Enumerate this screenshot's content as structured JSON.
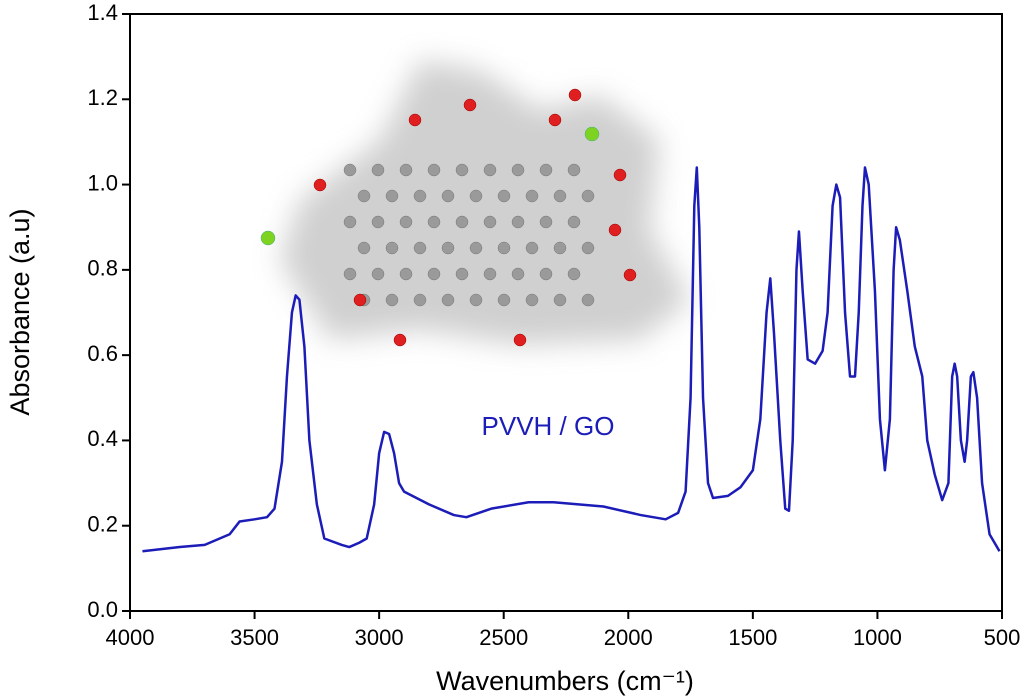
{
  "chart_data": {
    "type": "line",
    "xlabel": "Wavenumbers (cm⁻¹)",
    "ylabel": "Absorbance (a.u)",
    "xlim": [
      4000,
      500
    ],
    "xticks": [
      4000,
      3500,
      3000,
      2500,
      2000,
      1500,
      1000,
      500
    ],
    "ylim": [
      0,
      1.4
    ],
    "yticks": [
      {
        "value": 0,
        "label": "0.0"
      },
      0.2,
      0.4,
      0.6,
      0.8,
      {
        "value": 1,
        "label": "1.0"
      },
      1.2,
      1.4
    ],
    "x": [
      3950,
      3800,
      3700,
      3600,
      3560,
      3500,
      3450,
      3420,
      3390,
      3370,
      3350,
      3335,
      3320,
      3300,
      3280,
      3250,
      3220,
      3150,
      3120,
      3080,
      3050,
      3020,
      3000,
      2980,
      2960,
      2940,
      2920,
      2900,
      2800,
      2700,
      2650,
      2550,
      2400,
      2300,
      2100,
      1950,
      1850,
      1800,
      1770,
      1750,
      1735,
      1725,
      1715,
      1700,
      1680,
      1660,
      1600,
      1550,
      1500,
      1470,
      1445,
      1430,
      1415,
      1390,
      1370,
      1355,
      1340,
      1325,
      1315,
      1300,
      1280,
      1250,
      1220,
      1200,
      1180,
      1165,
      1150,
      1130,
      1110,
      1090,
      1075,
      1060,
      1050,
      1035,
      1010,
      990,
      970,
      950,
      935,
      925,
      910,
      880,
      850,
      820,
      800,
      770,
      740,
      715,
      700,
      690,
      680,
      665,
      650,
      640,
      625,
      615,
      600,
      580,
      550,
      510
    ],
    "series": [
      {
        "name": "PVVH / GO",
        "color": "#1c1cb8",
        "values": [
          0.14,
          0.15,
          0.155,
          0.18,
          0.21,
          0.215,
          0.22,
          0.24,
          0.35,
          0.55,
          0.7,
          0.74,
          0.73,
          0.62,
          0.4,
          0.25,
          0.17,
          0.155,
          0.15,
          0.16,
          0.17,
          0.25,
          0.37,
          0.42,
          0.415,
          0.37,
          0.3,
          0.28,
          0.25,
          0.225,
          0.22,
          0.24,
          0.255,
          0.255,
          0.245,
          0.225,
          0.215,
          0.23,
          0.28,
          0.5,
          0.95,
          1.04,
          0.9,
          0.5,
          0.3,
          0.265,
          0.27,
          0.29,
          0.33,
          0.45,
          0.7,
          0.78,
          0.65,
          0.4,
          0.24,
          0.235,
          0.4,
          0.8,
          0.89,
          0.75,
          0.59,
          0.58,
          0.61,
          0.7,
          0.95,
          1.0,
          0.97,
          0.7,
          0.55,
          0.55,
          0.7,
          0.95,
          1.04,
          1.0,
          0.75,
          0.45,
          0.33,
          0.45,
          0.8,
          0.9,
          0.87,
          0.75,
          0.62,
          0.55,
          0.4,
          0.32,
          0.26,
          0.3,
          0.55,
          0.58,
          0.55,
          0.4,
          0.35,
          0.4,
          0.55,
          0.56,
          0.5,
          0.3,
          0.18,
          0.14
        ]
      }
    ]
  }
}
